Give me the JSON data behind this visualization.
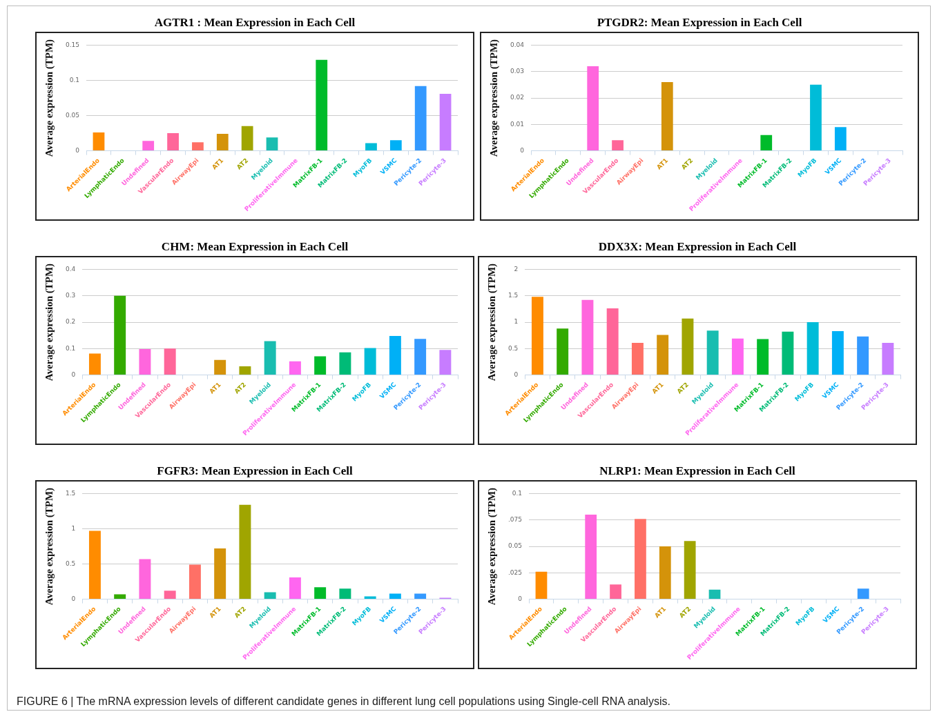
{
  "chart_data": [
    {
      "type": "bar",
      "title": "AGTR1 : Mean Expression in Each Cell",
      "ylabel": "Average expression (TPM)",
      "categories": [
        "ArterialEndo",
        "LymphaticEndo",
        "Undefined",
        "VascularEndo",
        "AirwayEpi",
        "AT1",
        "AT2",
        "Myeloid",
        "ProliferativeImmune",
        "MatrixFB-1",
        "MatrixFB-2",
        "MyoFB",
        "VSMC",
        "Pericyte-2",
        "Pericyte-3"
      ],
      "values": [
        0.026,
        0,
        0.014,
        0.025,
        0.012,
        0.024,
        0.035,
        0.019,
        0,
        0.129,
        0,
        0.011,
        0.015,
        0.092,
        0.081
      ],
      "colors": [
        "#ff8c00",
        "#33aa00",
        "#ff66dd",
        "#ff6699",
        "#ff7066",
        "#d4930a",
        "#a0a500",
        "#19bdb0",
        "#ff66f0",
        "#00bb2a",
        "#00bb77",
        "#00bcd8",
        "#00b0f6",
        "#3399ff",
        "#c77cff"
      ],
      "ylim": [
        0,
        0.15
      ],
      "yticks": [
        0,
        0.05,
        0.1,
        0.15
      ],
      "grid": "y",
      "legend": false
    },
    {
      "type": "bar",
      "title": "PTGDR2: Mean Expression in Each Cell",
      "ylabel": "Average expression (TPM)",
      "categories": [
        "ArterialEndo",
        "LymphaticEndo",
        "Undefined",
        "VascularEndo",
        "AirwayEpi",
        "AT1",
        "AT2",
        "Myeloid",
        "ProliferativeImmune",
        "MatrixFB-1",
        "MatrixFB-2",
        "MyoFB",
        "VSMC",
        "Pericyte-2",
        "Pericyte-3"
      ],
      "values": [
        0,
        0,
        0.032,
        0.004,
        0,
        0.026,
        0,
        0,
        0,
        0.006,
        0,
        0.025,
        0.009,
        0,
        0
      ],
      "colors": [
        "#ff8c00",
        "#33aa00",
        "#ff66dd",
        "#ff6699",
        "#ff7066",
        "#d4930a",
        "#a0a500",
        "#19bdb0",
        "#ff66f0",
        "#00bb2a",
        "#00bb77",
        "#00bcd8",
        "#00b0f6",
        "#3399ff",
        "#c77cff"
      ],
      "ylim": [
        0,
        0.04
      ],
      "yticks": [
        0,
        0.01,
        0.02,
        0.03,
        0.04
      ],
      "grid": "y",
      "legend": false
    },
    {
      "type": "bar",
      "title": "CHM: Mean Expression in Each Cell",
      "ylabel": "Average expression (TPM)",
      "categories": [
        "ArterialEndo",
        "LymphaticEndo",
        "Undefined",
        "VascularEndo",
        "AirwayEpi",
        "AT1",
        "AT2",
        "Myeloid",
        "ProliferativeImmune",
        "MatrixFB-1",
        "MatrixFB-2",
        "MyoFB",
        "VSMC",
        "Pericyte-2",
        "Pericyte-3"
      ],
      "values": [
        0.081,
        0.3,
        0.098,
        0.1,
        0,
        0.057,
        0.033,
        0.128,
        0.052,
        0.071,
        0.086,
        0.102,
        0.148,
        0.137,
        0.095
      ],
      "colors": [
        "#ff8c00",
        "#33aa00",
        "#ff66dd",
        "#ff6699",
        "#ff7066",
        "#d4930a",
        "#a0a500",
        "#19bdb0",
        "#ff66f0",
        "#00bb2a",
        "#00bb77",
        "#00bcd8",
        "#00b0f6",
        "#3399ff",
        "#c77cff"
      ],
      "ylim": [
        0,
        0.4
      ],
      "yticks": [
        0,
        0.1,
        0.2,
        0.3,
        0.4
      ],
      "grid": "y",
      "legend": false
    },
    {
      "type": "bar",
      "title": "DDX3X: Mean Expression in Each Cell",
      "ylabel": "Average expression (TPM)",
      "categories": [
        "ArterialEndo",
        "LymphaticEndo",
        "Undefined",
        "VascularEndo",
        "AirwayEpi",
        "AT1",
        "AT2",
        "Myeloid",
        "ProliferativeImmune",
        "MatrixFB-1",
        "MatrixFB-2",
        "MyoFB",
        "VSMC",
        "Pericyte-2",
        "Pericyte-3"
      ],
      "values": [
        1.48,
        0.88,
        1.42,
        1.26,
        0.61,
        0.76,
        1.07,
        0.84,
        0.69,
        0.68,
        0.82,
        1.0,
        0.83,
        0.73,
        0.61
      ],
      "colors": [
        "#ff8c00",
        "#33aa00",
        "#ff66dd",
        "#ff6699",
        "#ff7066",
        "#d4930a",
        "#a0a500",
        "#19bdb0",
        "#ff66f0",
        "#00bb2a",
        "#00bb77",
        "#00bcd8",
        "#00b0f6",
        "#3399ff",
        "#c77cff"
      ],
      "ylim": [
        0,
        2
      ],
      "yticks": [
        0,
        0.5,
        1,
        1.5,
        2
      ],
      "grid": "y",
      "legend": false
    },
    {
      "type": "bar",
      "title": "FGFR3: Mean Expression in Each Cell",
      "ylabel": "Average expression (TPM)",
      "categories": [
        "ArterialEndo",
        "LymphaticEndo",
        "Undefined",
        "VascularEndo",
        "AirwayEpi",
        "AT1",
        "AT2",
        "Myeloid",
        "ProliferativeImmune",
        "MatrixFB-1",
        "MatrixFB-2",
        "MyoFB",
        "VSMC",
        "Pericyte-2",
        "Pericyte-3"
      ],
      "values": [
        0.97,
        0.07,
        0.57,
        0.12,
        0.49,
        0.72,
        1.34,
        0.1,
        0.31,
        0.17,
        0.15,
        0.04,
        0.08,
        0.08,
        0.02
      ],
      "colors": [
        "#ff8c00",
        "#33aa00",
        "#ff66dd",
        "#ff6699",
        "#ff7066",
        "#d4930a",
        "#a0a500",
        "#19bdb0",
        "#ff66f0",
        "#00bb2a",
        "#00bb77",
        "#00bcd8",
        "#00b0f6",
        "#3399ff",
        "#c77cff"
      ],
      "ylim": [
        0,
        1.5
      ],
      "yticks": [
        0,
        0.5,
        1,
        1.5
      ],
      "grid": "y",
      "legend": false
    },
    {
      "type": "bar",
      "title": "NLRP1: Mean Expression in Each Cell",
      "ylabel": "Average expression (TPM)",
      "categories": [
        "ArterialEndo",
        "LymphaticEndo",
        "Undefined",
        "VascularEndo",
        "AirwayEpi",
        "AT1",
        "AT2",
        "Myeloid",
        "ProliferativeImmune",
        "MatrixFB-1",
        "MatrixFB-2",
        "MyoFB",
        "VSMC",
        "Pericyte-2",
        "Pericyte-3"
      ],
      "values": [
        0.026,
        0,
        0.08,
        0.014,
        0.076,
        0.05,
        0.055,
        0.009,
        0,
        0,
        0,
        0,
        0,
        0.01,
        0
      ],
      "colors": [
        "#ff8c00",
        "#33aa00",
        "#ff66dd",
        "#ff6699",
        "#ff7066",
        "#d4930a",
        "#a0a500",
        "#19bdb0",
        "#ff66f0",
        "#00bb2a",
        "#00bb77",
        "#00bcd8",
        "#00b0f6",
        "#3399ff",
        "#c77cff"
      ],
      "ylim": [
        0,
        0.1
      ],
      "yticks": [
        0,
        {
          "value": 0.025,
          "label": ".025"
        },
        0.05,
        {
          "value": 0.075,
          "label": ".075"
        },
        0.1
      ],
      "grid": "y",
      "legend": false,
      "annotations": [
        "FIGURE 6 | The mRNA expression levels of different candidate genes in different lung cell populations using Single-cell RNA analysis."
      ]
    }
  ]
}
